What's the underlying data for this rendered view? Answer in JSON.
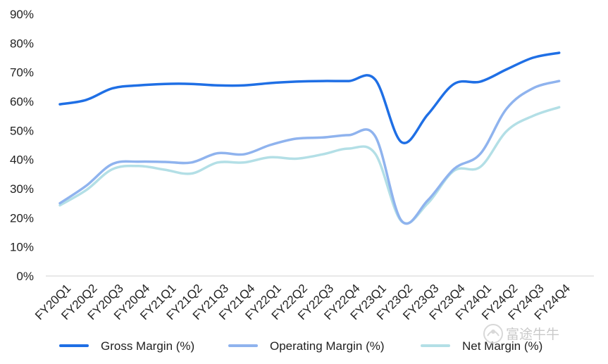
{
  "chart_data": {
    "type": "line",
    "categories": [
      "FY20Q1",
      "FY20Q2",
      "FY20Q3",
      "FY20Q4",
      "FY21Q1",
      "FY21Q2",
      "FY21Q3",
      "FY21Q4",
      "FY22Q1",
      "FY22Q2",
      "FY22Q3",
      "FY22Q4",
      "FY23Q1",
      "FY23Q2",
      "FY23Q3",
      "FY23Q4",
      "FY24Q1",
      "FY24Q2",
      "FY24Q3",
      "FY24Q4"
    ],
    "series": [
      {
        "name": "Gross Margin (%)",
        "color": "#1f6fe5",
        "values": [
          59,
          60.5,
          64.5,
          65.5,
          66,
          66,
          65.5,
          65.5,
          66.3,
          66.8,
          67,
          67,
          67.5,
          46,
          55.5,
          66,
          66.8,
          71,
          75,
          76.7
        ]
      },
      {
        "name": "Operating Margin (%)",
        "color": "#8fb3ee",
        "values": [
          25,
          31,
          38.5,
          39.3,
          39.2,
          39,
          42.2,
          41.8,
          45,
          47.2,
          47.6,
          48.4,
          48,
          19,
          26,
          36.8,
          42,
          57.5,
          64.5,
          67
        ]
      },
      {
        "name": "Net Margin (%)",
        "color": "#b3dfe6",
        "values": [
          24.3,
          29.5,
          36.7,
          37.8,
          36.5,
          35.2,
          39,
          39,
          40.8,
          40.3,
          41.8,
          43.8,
          42,
          18.8,
          25,
          36.2,
          37.5,
          49.8,
          55,
          58
        ]
      }
    ],
    "yticks": [
      "0%",
      "10%",
      "20%",
      "30%",
      "40%",
      "50%",
      "60%",
      "70%",
      "80%",
      "90%"
    ],
    "ylim": [
      0,
      90
    ],
    "grid": false,
    "legend_position": "bottom"
  },
  "watermark": {
    "text": "富途牛牛"
  }
}
